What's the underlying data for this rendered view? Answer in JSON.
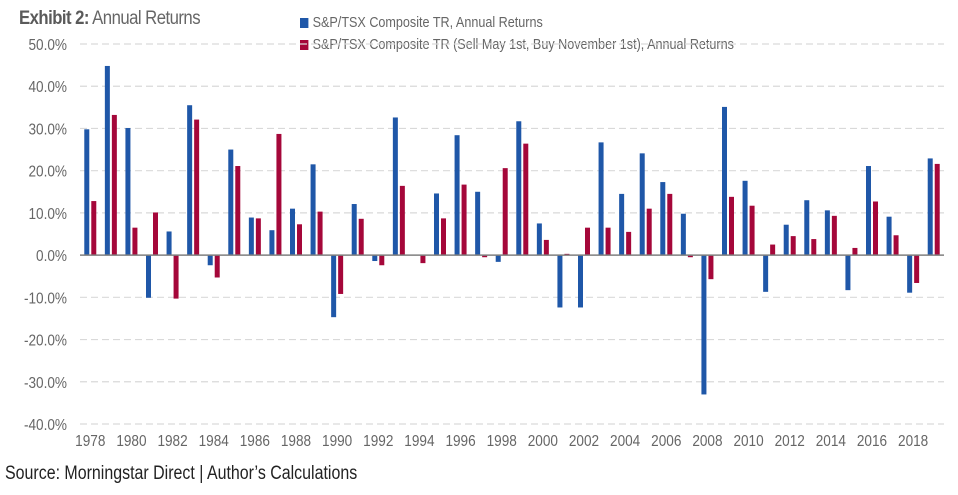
{
  "header": {
    "title_bold": "Exhibit 2:",
    "title_rest": " Annual Returns"
  },
  "footer": {
    "source": "Source: Morningstar Direct  |  Author’s Calculations"
  },
  "colors": {
    "series_blue": "#1f57a8",
    "series_red": "#a5073a",
    "gridline": "#d9d9d9",
    "zero_line": "#7f7f7f",
    "tick_text": "#666666"
  },
  "chart_data": {
    "type": "bar",
    "title": "Exhibit 2: Annual Returns",
    "xlabel": "",
    "ylabel": "",
    "ylim": [
      -40,
      50
    ],
    "yticks": [
      50,
      40,
      30,
      20,
      10,
      0,
      -10,
      -20,
      -30,
      -40
    ],
    "ytick_labels": [
      "50.0%",
      "40.0%",
      "30.0%",
      "20.0%",
      "10.0%",
      "0.0%",
      "-10.0%",
      "-20.0%",
      "-30.0%",
      "-40.0%"
    ],
    "grid": true,
    "legend_position": "top-center",
    "categories": [
      "1978",
      "1979",
      "1980",
      "1981",
      "1982",
      "1983",
      "1984",
      "1985",
      "1986",
      "1987",
      "1988",
      "1989",
      "1990",
      "1991",
      "1992",
      "1993",
      "1994",
      "1995",
      "1996",
      "1997",
      "1998",
      "1999",
      "2000",
      "2001",
      "2002",
      "2003",
      "2004",
      "2005",
      "2006",
      "2007",
      "2008",
      "2009",
      "2010",
      "2011",
      "2012",
      "2013",
      "2014",
      "2015",
      "2016",
      "2017",
      "2018",
      "2019"
    ],
    "xtick_labels": [
      "1978",
      "1980",
      "1982",
      "1984",
      "1986",
      "1988",
      "1990",
      "1992",
      "1994",
      "1996",
      "1998",
      "2000",
      "2002",
      "2004",
      "2006",
      "2008",
      "2010",
      "2012",
      "2014",
      "2016",
      "2018"
    ],
    "series": [
      {
        "name": "S&P/TSX Composite TR, Annual Returns",
        "color": "#1f57a8",
        "values": [
          29.8,
          44.8,
          30.1,
          -10.1,
          5.6,
          35.5,
          -2.4,
          25.0,
          8.9,
          5.9,
          11.0,
          21.5,
          -14.7,
          12.1,
          -1.4,
          32.6,
          0.0,
          14.6,
          28.4,
          15.0,
          -1.6,
          31.7,
          7.5,
          -12.4,
          -12.4,
          26.7,
          14.5,
          24.1,
          17.3,
          9.8,
          -33.0,
          35.1,
          17.6,
          -8.7,
          7.2,
          13.0,
          10.6,
          -8.3,
          21.1,
          9.1,
          -8.9,
          22.9
        ]
      },
      {
        "name": "S&P/TSX Composite TR (Sell May 1st, Buy November 1st), Annual Returns",
        "color": "#a5073a",
        "values": [
          12.8,
          33.2,
          6.5,
          10.1,
          -10.3,
          32.1,
          -5.3,
          21.1,
          8.7,
          28.7,
          7.3,
          10.3,
          -9.2,
          8.6,
          -2.4,
          16.4,
          -1.9,
          8.7,
          16.7,
          -0.5,
          20.6,
          26.4,
          3.6,
          0.3,
          6.5,
          6.5,
          5.5,
          11.0,
          14.5,
          -0.5,
          -5.7,
          13.8,
          11.7,
          2.5,
          4.5,
          3.8,
          9.3,
          1.7,
          12.7,
          4.7,
          -6.6,
          21.6
        ]
      }
    ]
  }
}
